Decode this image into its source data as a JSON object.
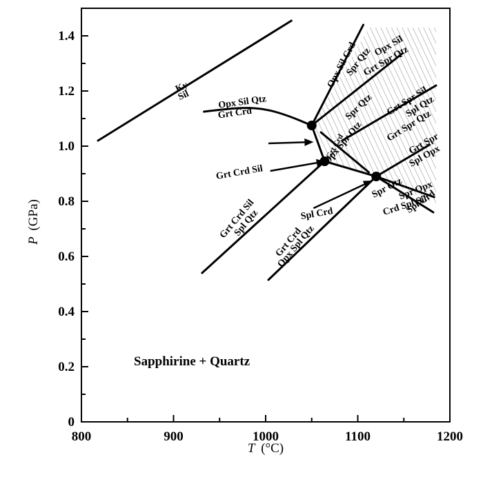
{
  "chart_data": {
    "type": "line",
    "xlabel_var": "T",
    "xlabel_unit": "(°C)",
    "ylabel_var": "P",
    "ylabel_unit": "(GPa)",
    "xlim": [
      800,
      1200
    ],
    "ylim": [
      0,
      1.5
    ],
    "x_ticks": [
      "800",
      "900",
      "1000",
      "1100",
      "1200"
    ],
    "x_tick_values": [
      800,
      900,
      1000,
      1100,
      1200
    ],
    "y_ticks": [
      "0",
      "0.2",
      "0.4",
      "0.6",
      "0.8",
      "1.0",
      "1.2",
      "1.4"
    ],
    "y_tick_values": [
      0,
      0.2,
      0.4,
      0.6,
      0.8,
      1.0,
      1.2,
      1.4
    ],
    "field_label": "Sapphirine + Quartz",
    "invariant_points": [
      {
        "x": 1050,
        "y": 1.075
      },
      {
        "x": 1064,
        "y": 0.945
      },
      {
        "x": 1120,
        "y": 0.89
      }
    ],
    "reactions": [
      {
        "points": [
          [
            818,
            1.02
          ],
          [
            1028,
            1.455
          ]
        ]
      },
      {
        "points": [
          [
            933,
            1.125
          ],
          [
            945,
            1.13
          ],
          [
            975,
            1.14
          ],
          [
            1000,
            1.135
          ],
          [
            1025,
            1.11
          ],
          [
            1050,
            1.075
          ]
        ]
      },
      {
        "points": [
          [
            1050,
            1.075
          ],
          [
            1106,
            1.44
          ]
        ]
      },
      {
        "points": [
          [
            1050,
            1.075
          ],
          [
            1148,
            1.335
          ]
        ]
      },
      {
        "points": [
          [
            1050,
            1.075
          ],
          [
            1064,
            0.945
          ]
        ]
      },
      {
        "points": [
          [
            1064,
            0.945
          ],
          [
            1120,
            0.89
          ]
        ]
      },
      {
        "points": [
          [
            1060,
            1.05
          ],
          [
            1112,
            0.905
          ]
        ]
      },
      {
        "points": [
          [
            1064,
            0.945
          ],
          [
            931,
            0.54
          ]
        ]
      },
      {
        "points": [
          [
            1120,
            0.89
          ],
          [
            1003,
            0.515
          ]
        ]
      },
      {
        "points": [
          [
            1120,
            0.89
          ],
          [
            1178,
            1.005
          ]
        ]
      },
      {
        "points": [
          [
            1120,
            0.89
          ],
          [
            1183,
            0.815
          ]
        ]
      },
      {
        "points": [
          [
            1120,
            0.89
          ],
          [
            1182,
            0.76
          ]
        ]
      },
      {
        "points": [
          [
            1083,
            1.02
          ],
          [
            1185,
            1.22
          ]
        ]
      }
    ],
    "arrows": [
      {
        "from": [
          1003,
          1.01
        ],
        "to": [
          1052,
          1.015
        ]
      },
      {
        "from": [
          1005,
          0.91
        ],
        "to": [
          1065,
          0.945
        ]
      },
      {
        "from": [
          1052,
          0.775
        ],
        "to": [
          1116,
          0.875
        ]
      }
    ],
    "labels": [
      {
        "text": "Ky",
        "x": 910,
        "y": 1.205
      },
      {
        "text": "Sil",
        "x": 912,
        "y": 1.175
      },
      {
        "text": "Opx Sil Qtz",
        "x": 975,
        "y": 1.15
      },
      {
        "text": "Grt  Crd",
        "x": 967,
        "y": 1.11
      },
      {
        "text": "Opx Sil Crd",
        "x": 1085,
        "y": 1.29
      },
      {
        "text": "Spr Qtz",
        "x": 1103,
        "y": 1.3
      },
      {
        "text": "Opx Sil",
        "x": 1135,
        "y": 1.355
      },
      {
        "text": "Grt Spr Qtz",
        "x": 1132,
        "y": 1.3
      },
      {
        "text": "Spr Qtz",
        "x": 1103,
        "y": 1.135
      },
      {
        "text": "Grt Spr Sil",
        "x": 1155,
        "y": 1.155
      },
      {
        "text": "Spl Qtz",
        "x": 1169,
        "y": 1.135
      },
      {
        "text": "Grt Spr Qtz",
        "x": 1157,
        "y": 1.065
      },
      {
        "text": "Opx Spr Qtz",
        "x": 1086,
        "y": 1.005
      },
      {
        "text": "Grt Crd",
        "x": 1077,
        "y": 0.995
      },
      {
        "text": "Grt Spr",
        "x": 1173,
        "y": 1.0
      },
      {
        "text": "Spl Opx",
        "x": 1174,
        "y": 0.955
      },
      {
        "text": "Grt Crd Sil",
        "x": 972,
        "y": 0.895
      },
      {
        "text": "Spr Opx",
        "x": 1164,
        "y": 0.83
      },
      {
        "text": "Spr Qtz",
        "x": 1133,
        "y": 0.84
      },
      {
        "text": "Spl Crd",
        "x": 1170,
        "y": 0.79
      },
      {
        "text": "Crd Spl Sil",
        "x": 1152,
        "y": 0.775
      },
      {
        "text": "Spl Crd",
        "x": 1056,
        "y": 0.745
      },
      {
        "text": "Grt Crd Sil",
        "x": 971,
        "y": 0.73
      },
      {
        "text": "Spl Qtz",
        "x": 981,
        "y": 0.715
      },
      {
        "text": "Grt Crd",
        "x": 1027,
        "y": 0.645
      },
      {
        "text": "Opx Spl Qtz",
        "x": 1035,
        "y": 0.63
      }
    ],
    "shaded_region": [
      [
        1050,
        1.075
      ],
      [
        1112,
        1.43
      ],
      [
        1185,
        1.43
      ],
      [
        1185,
        0.79
      ],
      [
        1120,
        0.89
      ],
      [
        1064,
        0.945
      ]
    ],
    "grid": false
  }
}
